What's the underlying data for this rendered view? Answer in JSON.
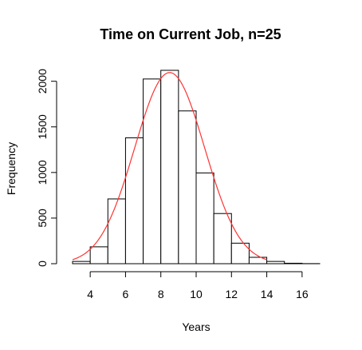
{
  "chart_data": {
    "type": "bar",
    "title": "Time on Current Job, n=25",
    "xlabel": "Years",
    "ylabel": "Frequency",
    "bins": [
      {
        "start": 3,
        "end": 4,
        "value": 25
      },
      {
        "start": 4,
        "end": 5,
        "value": 185
      },
      {
        "start": 5,
        "end": 6,
        "value": 710
      },
      {
        "start": 6,
        "end": 7,
        "value": 1380
      },
      {
        "start": 7,
        "end": 8,
        "value": 2025
      },
      {
        "start": 8,
        "end": 9,
        "value": 2120
      },
      {
        "start": 9,
        "end": 10,
        "value": 1675
      },
      {
        "start": 10,
        "end": 11,
        "value": 995
      },
      {
        "start": 11,
        "end": 12,
        "value": 550
      },
      {
        "start": 12,
        "end": 13,
        "value": 225
      },
      {
        "start": 13,
        "end": 14,
        "value": 70
      },
      {
        "start": 14,
        "end": 15,
        "value": 25
      },
      {
        "start": 15,
        "end": 16,
        "value": 5
      },
      {
        "start": 16,
        "end": 17,
        "value": 1
      }
    ],
    "x_ticks": [
      4,
      6,
      8,
      10,
      12,
      14,
      16
    ],
    "y_ticks": [
      0,
      500,
      1000,
      1500,
      2000
    ],
    "xlim": [
      3,
      17
    ],
    "ylim": [
      0,
      2120
    ],
    "overlay_curve": {
      "type": "normal_density_scaled",
      "mean": 8.5,
      "sd": 1.98,
      "scale": 10400,
      "color": "#ff3333",
      "x_range": [
        3,
        14
      ]
    },
    "bar_fill": "#ffffff",
    "bar_stroke": "#000000"
  }
}
